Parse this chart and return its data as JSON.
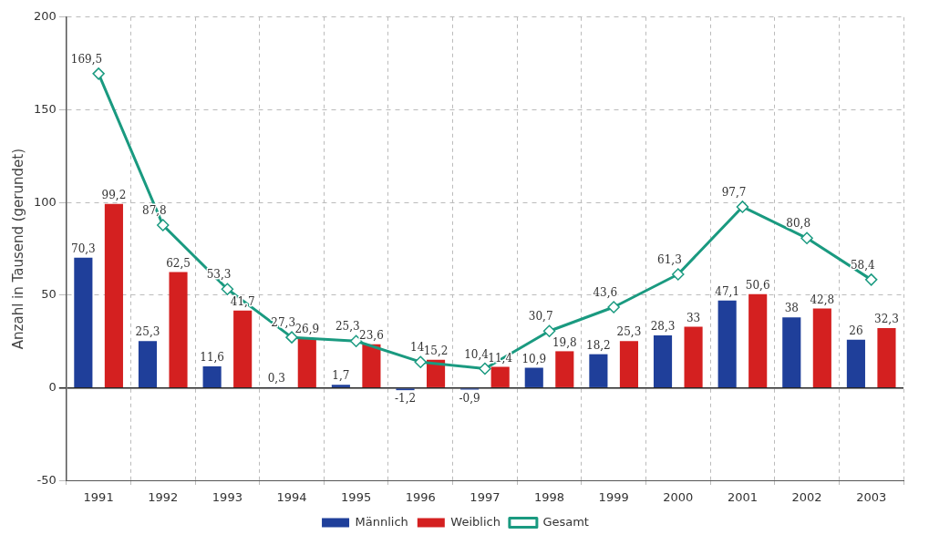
{
  "chart_data": {
    "type": "bar",
    "ylabel": "Anzahl in Tausend (gerundet)",
    "categories": [
      "1991",
      "1992",
      "1993",
      "1994",
      "1995",
      "1996",
      "1997",
      "1998",
      "1999",
      "2000",
      "2001",
      "2002",
      "2003"
    ],
    "series": [
      {
        "name": "Männlich",
        "color": "#1f3f9a",
        "values": [
          70.3,
          25.3,
          11.6,
          0.3,
          1.7,
          -1.2,
          -0.9,
          10.9,
          18.2,
          28.3,
          47.1,
          38,
          26
        ],
        "value_labels": [
          "70,3",
          "25,3",
          "11,6",
          "0,3",
          "1,7",
          "-1,2",
          "-0,9",
          "10,9",
          "18,2",
          "28,3",
          "47,1",
          "38",
          "26"
        ]
      },
      {
        "name": "Weiblich",
        "color": "#d42020",
        "values": [
          99.2,
          62.5,
          41.7,
          26.9,
          23.6,
          15.2,
          11.4,
          19.8,
          25.3,
          33,
          50.6,
          42.8,
          32.3
        ],
        "value_labels": [
          "99,2",
          "62,5",
          "41,7",
          "26,9",
          "23,6",
          "15,2",
          "11,4",
          "19,8",
          "25,3",
          "33",
          "50,6",
          "42,8",
          "32,3"
        ]
      },
      {
        "name": "Gesamt",
        "type": "line",
        "color": "#1a9a80",
        "marker": "diamond",
        "values": [
          169.5,
          87.8,
          53.3,
          27.3,
          25.3,
          14,
          10.4,
          30.7,
          43.6,
          61.3,
          97.7,
          80.8,
          58.4
        ],
        "value_labels": [
          "169,5",
          "87,8",
          "53,3",
          "27,3",
          "25,3",
          "14",
          "10,4",
          "30,7",
          "43,6",
          "61,3",
          "97,7",
          "80,8",
          "58,4"
        ]
      }
    ],
    "ylim": [
      -50,
      200
    ],
    "yticks": [
      -50,
      0,
      50,
      100,
      150,
      200
    ],
    "grid": true,
    "legend": "bottom"
  }
}
